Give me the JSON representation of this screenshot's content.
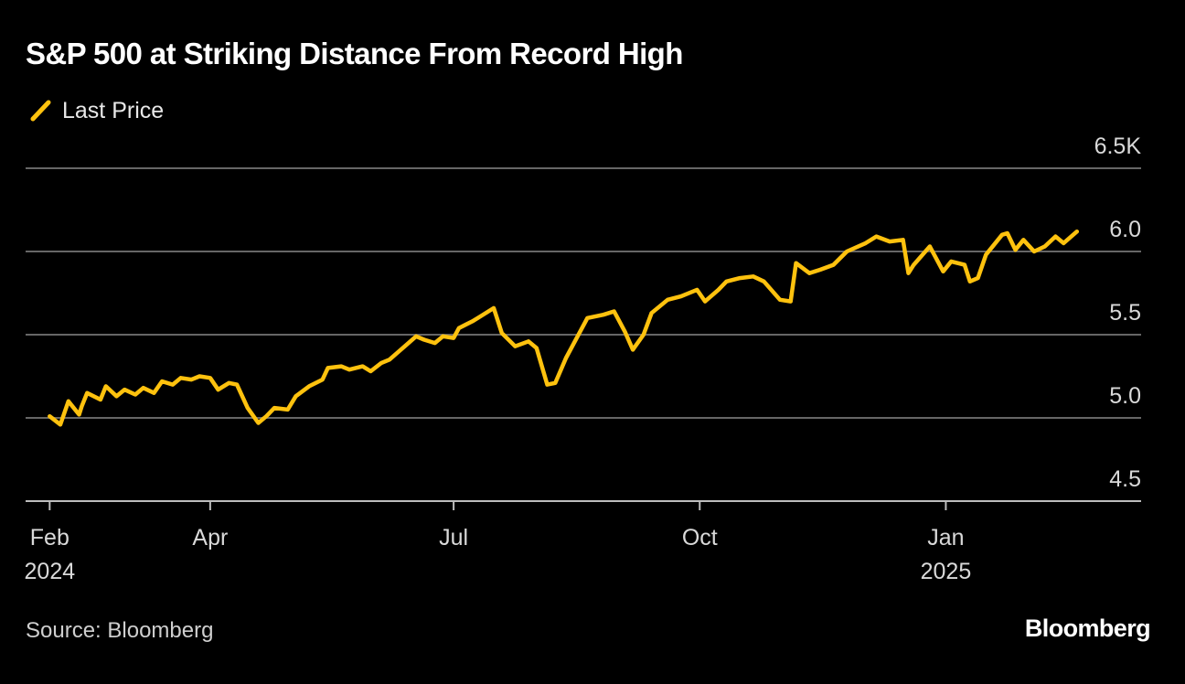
{
  "header": {
    "title": "S&P 500 at Striking Distance From Record High"
  },
  "footer": {
    "source": "Source: Bloomberg",
    "brand": "Bloomberg"
  },
  "colors": {
    "background": "#000000",
    "line": "#FFC20E",
    "grid": "#666666",
    "text": "#D9D9D9"
  },
  "chart_data": {
    "type": "line",
    "title": "S&P 500 at Striking Distance From Record High",
    "xlabel": "",
    "ylabel": "",
    "legend_position": "top-left",
    "grid": true,
    "xlim": [
      "2024-01-23",
      "2025-03-15"
    ],
    "ylim": [
      4.5,
      6.5
    ],
    "y_ticks": [
      {
        "value": 4.5,
        "label": "4.5"
      },
      {
        "value": 5.0,
        "label": "5.0"
      },
      {
        "value": 5.5,
        "label": "5.5"
      },
      {
        "value": 6.0,
        "label": "6.0"
      },
      {
        "value": 6.5,
        "label": "6.5K"
      }
    ],
    "x_ticks": [
      {
        "date": "2024-02-01",
        "label": "Feb",
        "sublabel": "2024"
      },
      {
        "date": "2024-04-01",
        "label": "Apr",
        "sublabel": ""
      },
      {
        "date": "2024-07-01",
        "label": "Jul",
        "sublabel": ""
      },
      {
        "date": "2024-10-01",
        "label": "Oct",
        "sublabel": ""
      },
      {
        "date": "2025-01-01",
        "label": "Jan",
        "sublabel": "2025"
      }
    ],
    "series": [
      {
        "name": "Last Price",
        "x": [
          "2024-02-01",
          "2024-02-05",
          "2024-02-08",
          "2024-02-12",
          "2024-02-13",
          "2024-02-15",
          "2024-02-20",
          "2024-02-22",
          "2024-02-26",
          "2024-02-29",
          "2024-03-04",
          "2024-03-07",
          "2024-03-11",
          "2024-03-14",
          "2024-03-18",
          "2024-03-21",
          "2024-03-25",
          "2024-03-28",
          "2024-04-01",
          "2024-04-04",
          "2024-04-08",
          "2024-04-11",
          "2024-04-15",
          "2024-04-19",
          "2024-04-22",
          "2024-04-25",
          "2024-04-30",
          "2024-05-03",
          "2024-05-08",
          "2024-05-13",
          "2024-05-15",
          "2024-05-20",
          "2024-05-23",
          "2024-05-28",
          "2024-05-31",
          "2024-06-04",
          "2024-06-07",
          "2024-06-12",
          "2024-06-17",
          "2024-06-20",
          "2024-06-24",
          "2024-06-27",
          "2024-07-01",
          "2024-07-03",
          "2024-07-08",
          "2024-07-11",
          "2024-07-16",
          "2024-07-19",
          "2024-07-24",
          "2024-07-29",
          "2024-08-01",
          "2024-08-05",
          "2024-08-08",
          "2024-08-12",
          "2024-08-15",
          "2024-08-20",
          "2024-08-26",
          "2024-08-30",
          "2024-09-03",
          "2024-09-06",
          "2024-09-10",
          "2024-09-13",
          "2024-09-19",
          "2024-09-24",
          "2024-09-30",
          "2024-10-03",
          "2024-10-08",
          "2024-10-11",
          "2024-10-16",
          "2024-10-21",
          "2024-10-25",
          "2024-10-31",
          "2024-11-04",
          "2024-11-06",
          "2024-11-11",
          "2024-11-15",
          "2024-11-20",
          "2024-11-25",
          "2024-12-02",
          "2024-12-06",
          "2024-12-11",
          "2024-12-16",
          "2024-12-18",
          "2024-12-20",
          "2024-12-26",
          "2024-12-31",
          "2025-01-03",
          "2025-01-08",
          "2025-01-10",
          "2025-01-13",
          "2025-01-16",
          "2025-01-22",
          "2025-01-24",
          "2025-01-27",
          "2025-01-30",
          "2025-02-03",
          "2025-02-07",
          "2025-02-11",
          "2025-02-14",
          "2025-02-19"
        ],
        "values": [
          5.01,
          4.96,
          5.1,
          5.02,
          5.07,
          5.15,
          5.11,
          5.19,
          5.13,
          5.17,
          5.14,
          5.18,
          5.15,
          5.22,
          5.2,
          5.24,
          5.23,
          5.25,
          5.24,
          5.17,
          5.21,
          5.2,
          5.06,
          4.97,
          5.01,
          5.06,
          5.05,
          5.13,
          5.19,
          5.23,
          5.3,
          5.31,
          5.29,
          5.31,
          5.28,
          5.33,
          5.35,
          5.42,
          5.49,
          5.47,
          5.45,
          5.49,
          5.48,
          5.54,
          5.58,
          5.61,
          5.66,
          5.51,
          5.43,
          5.46,
          5.42,
          5.2,
          5.21,
          5.36,
          5.45,
          5.6,
          5.62,
          5.64,
          5.52,
          5.41,
          5.5,
          5.63,
          5.71,
          5.73,
          5.77,
          5.7,
          5.77,
          5.82,
          5.84,
          5.85,
          5.82,
          5.71,
          5.7,
          5.93,
          5.87,
          5.89,
          5.92,
          6.0,
          6.05,
          6.09,
          6.06,
          6.07,
          5.87,
          5.92,
          6.03,
          5.88,
          5.94,
          5.92,
          5.82,
          5.84,
          5.98,
          6.1,
          6.11,
          6.01,
          6.07,
          6.0,
          6.03,
          6.09,
          6.05,
          6.12
        ]
      }
    ]
  }
}
